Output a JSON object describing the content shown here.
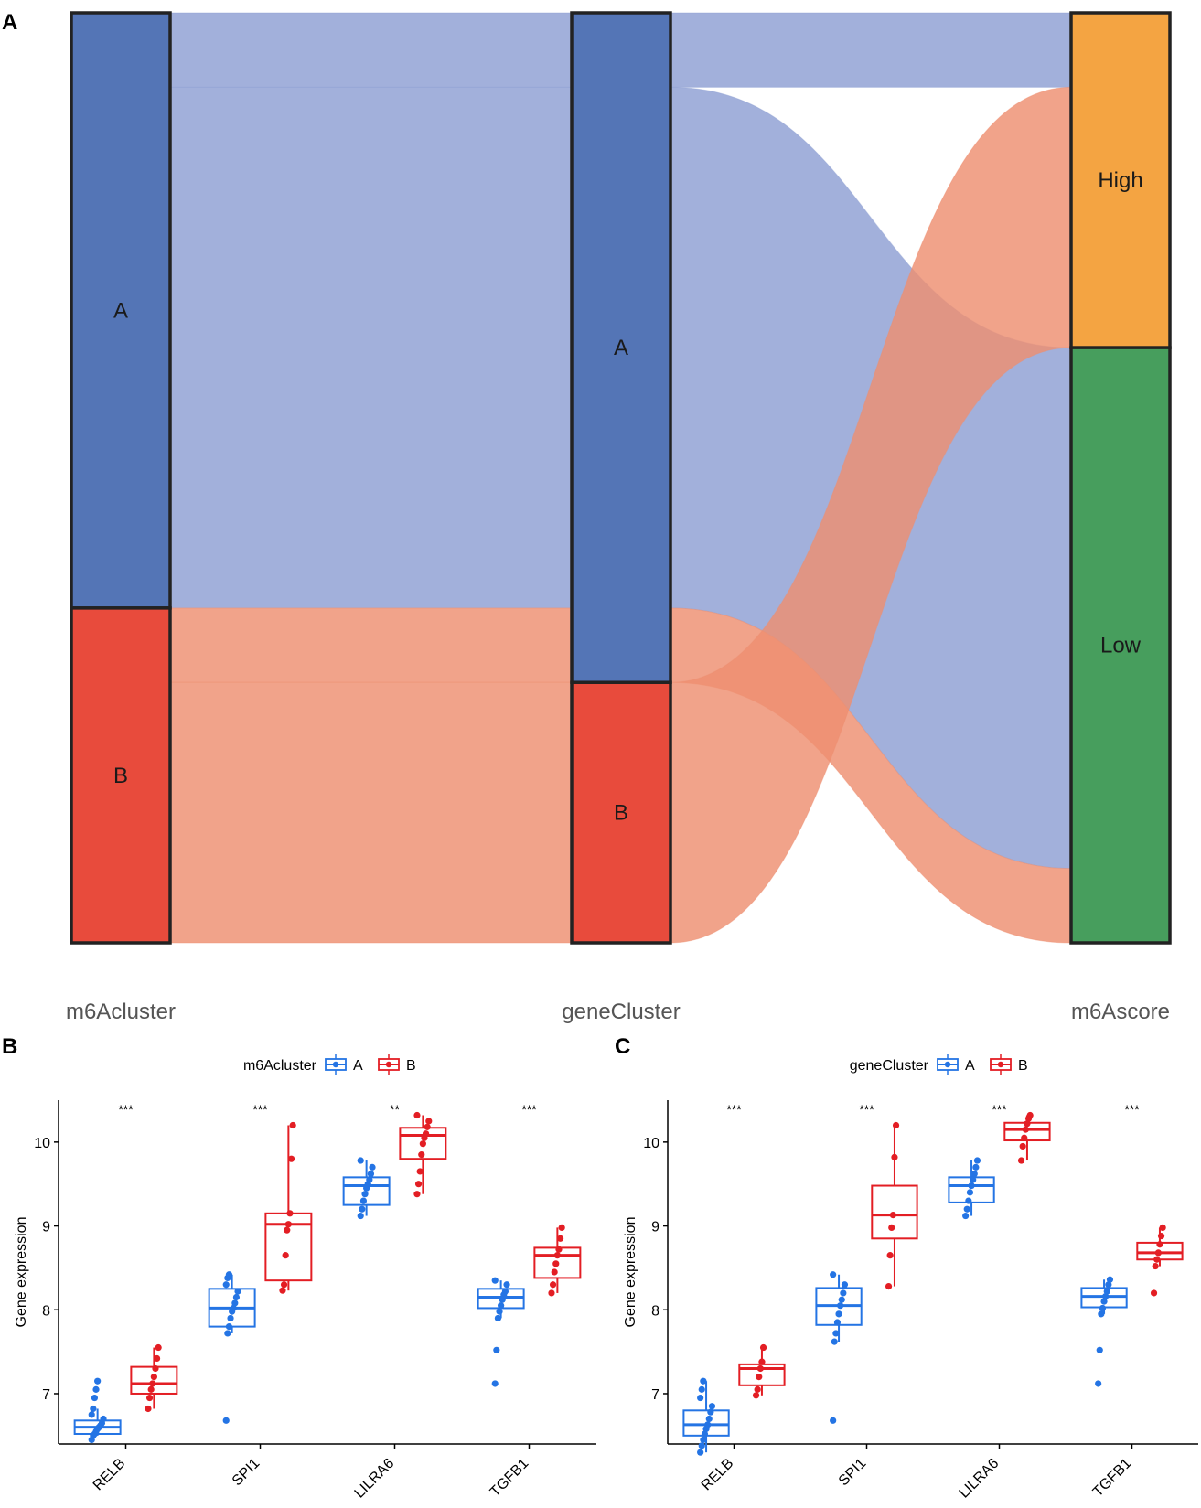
{
  "panels": {
    "a": "A",
    "b": "B",
    "c": "C"
  },
  "colors": {
    "a_node": "#5475B6",
    "b_node": "#E84B3C",
    "high_node": "#F4A442",
    "low_node": "#479E5D",
    "flow_a": "#8E9FD3",
    "flow_b": "#EE8F70",
    "box_a": "#2474E4",
    "box_b": "#E31E24"
  },
  "chart_data": [
    {
      "type": "sankey",
      "axes": [
        "m6Acluster",
        "geneCluster",
        "m6Ascore"
      ],
      "nodes": [
        {
          "axis": "m6Acluster",
          "label": "A",
          "value": 64
        },
        {
          "axis": "m6Acluster",
          "label": "B",
          "value": 36
        },
        {
          "axis": "geneCluster",
          "label": "A",
          "value": 72
        },
        {
          "axis": "geneCluster",
          "label": "B",
          "value": 28
        },
        {
          "axis": "m6Ascore",
          "label": "High",
          "value": 36
        },
        {
          "axis": "m6Ascore",
          "label": "Low",
          "value": 64
        }
      ],
      "flows": [
        {
          "m6Acluster": "A",
          "geneCluster": "A",
          "m6Ascore": "High",
          "value": 8
        },
        {
          "m6Acluster": "A",
          "geneCluster": "A",
          "m6Ascore": "Low",
          "value": 56
        },
        {
          "m6Acluster": "B",
          "geneCluster": "A",
          "m6Ascore": "Low",
          "value": 8
        },
        {
          "m6Acluster": "B",
          "geneCluster": "B",
          "m6Ascore": "High",
          "value": 28
        }
      ]
    },
    {
      "type": "boxplot",
      "legend_title": "m6Acluster",
      "groups": [
        "A",
        "B"
      ],
      "ylabel": "Gene expression",
      "ylim": [
        6.4,
        10.5
      ],
      "yticks": [
        7,
        8,
        9,
        10
      ],
      "categories": [
        "RELB",
        "SPI1",
        "LILRA6",
        "TGFB1"
      ],
      "significance": [
        "***",
        "***",
        "**",
        "***"
      ],
      "boxes": [
        {
          "gene": "RELB",
          "group": "A",
          "min": 6.5,
          "q1": 6.52,
          "median": 6.6,
          "q3": 6.68,
          "max": 6.82,
          "points": [
            6.45,
            6.5,
            6.52,
            6.55,
            6.58,
            6.6,
            6.62,
            6.65,
            6.7,
            6.75,
            6.82,
            6.95,
            7.05,
            7.15
          ]
        },
        {
          "gene": "RELB",
          "group": "B",
          "min": 6.82,
          "q1": 7.0,
          "median": 7.12,
          "q3": 7.32,
          "max": 7.55,
          "points": [
            6.82,
            6.95,
            7.05,
            7.12,
            7.2,
            7.3,
            7.42,
            7.55
          ]
        },
        {
          "gene": "SPI1",
          "group": "A",
          "min": 7.72,
          "q1": 7.8,
          "median": 8.02,
          "q3": 8.25,
          "max": 8.42,
          "points": [
            6.68,
            7.72,
            7.8,
            7.9,
            7.98,
            8.02,
            8.08,
            8.15,
            8.22,
            8.3,
            8.38,
            8.42
          ]
        },
        {
          "gene": "SPI1",
          "group": "B",
          "min": 8.23,
          "q1": 8.35,
          "median": 9.02,
          "q3": 9.15,
          "max": 10.2,
          "points": [
            8.23,
            8.3,
            8.65,
            8.95,
            9.02,
            9.15,
            9.8,
            10.2
          ]
        },
        {
          "gene": "LILRA6",
          "group": "A",
          "min": 9.12,
          "q1": 9.25,
          "median": 9.48,
          "q3": 9.58,
          "max": 9.78,
          "points": [
            9.12,
            9.2,
            9.3,
            9.38,
            9.45,
            9.5,
            9.55,
            9.62,
            9.7,
            9.78
          ]
        },
        {
          "gene": "LILRA6",
          "group": "B",
          "min": 9.38,
          "q1": 9.8,
          "median": 10.08,
          "q3": 10.17,
          "max": 10.32,
          "points": [
            9.38,
            9.5,
            9.65,
            9.85,
            9.98,
            10.05,
            10.1,
            10.18,
            10.25,
            10.32
          ]
        },
        {
          "gene": "TGFB1",
          "group": "A",
          "min": 7.9,
          "q1": 8.02,
          "median": 8.15,
          "q3": 8.25,
          "max": 8.35,
          "points": [
            7.12,
            7.52,
            7.9,
            7.98,
            8.05,
            8.12,
            8.18,
            8.22,
            8.3,
            8.35
          ]
        },
        {
          "gene": "TGFB1",
          "group": "B",
          "min": 8.2,
          "q1": 8.38,
          "median": 8.65,
          "q3": 8.74,
          "max": 8.98,
          "points": [
            8.2,
            8.3,
            8.45,
            8.55,
            8.65,
            8.72,
            8.85,
            8.98
          ]
        }
      ]
    },
    {
      "type": "boxplot",
      "legend_title": "geneCluster",
      "groups": [
        "A",
        "B"
      ],
      "ylabel": "Gene expression",
      "ylim": [
        6.4,
        10.5
      ],
      "yticks": [
        7,
        8,
        9,
        10
      ],
      "categories": [
        "RELB",
        "SPI1",
        "LILRA6",
        "TGFB1"
      ],
      "significance": [
        "***",
        "***",
        "***",
        "***"
      ],
      "boxes": [
        {
          "gene": "RELB",
          "group": "A",
          "min": 6.3,
          "q1": 6.5,
          "median": 6.63,
          "q3": 6.8,
          "max": 7.15,
          "points": [
            6.3,
            6.38,
            6.45,
            6.52,
            6.58,
            6.63,
            6.7,
            6.78,
            6.85,
            6.95,
            7.05,
            7.15
          ]
        },
        {
          "gene": "RELB",
          "group": "B",
          "min": 6.98,
          "q1": 7.1,
          "median": 7.3,
          "q3": 7.35,
          "max": 7.55,
          "points": [
            6.98,
            7.05,
            7.2,
            7.3,
            7.38,
            7.55
          ]
        },
        {
          "gene": "SPI1",
          "group": "A",
          "min": 7.62,
          "q1": 7.82,
          "median": 8.05,
          "q3": 8.26,
          "max": 8.42,
          "points": [
            6.68,
            7.62,
            7.72,
            7.85,
            7.95,
            8.05,
            8.12,
            8.2,
            8.3,
            8.42
          ]
        },
        {
          "gene": "SPI1",
          "group": "B",
          "min": 8.28,
          "q1": 8.85,
          "median": 9.13,
          "q3": 9.48,
          "max": 10.2,
          "points": [
            8.28,
            8.65,
            8.98,
            9.13,
            9.82,
            10.2
          ]
        },
        {
          "gene": "LILRA6",
          "group": "A",
          "min": 9.12,
          "q1": 9.28,
          "median": 9.48,
          "q3": 9.58,
          "max": 9.78,
          "points": [
            9.12,
            9.2,
            9.3,
            9.4,
            9.48,
            9.55,
            9.62,
            9.7,
            9.78
          ]
        },
        {
          "gene": "LILRA6",
          "group": "B",
          "min": 9.78,
          "q1": 10.02,
          "median": 10.15,
          "q3": 10.23,
          "max": 10.32,
          "points": [
            9.78,
            9.95,
            10.05,
            10.15,
            10.22,
            10.28,
            10.32
          ]
        },
        {
          "gene": "TGFB1",
          "group": "A",
          "min": 7.95,
          "q1": 8.03,
          "median": 8.16,
          "q3": 8.26,
          "max": 8.36,
          "points": [
            7.12,
            7.52,
            7.95,
            8.02,
            8.1,
            8.16,
            8.22,
            8.3,
            8.36
          ]
        },
        {
          "gene": "TGFB1",
          "group": "B",
          "min": 8.52,
          "q1": 8.6,
          "median": 8.68,
          "q3": 8.8,
          "max": 8.98,
          "points": [
            8.2,
            8.52,
            8.6,
            8.68,
            8.78,
            8.88,
            8.98
          ]
        }
      ]
    }
  ]
}
